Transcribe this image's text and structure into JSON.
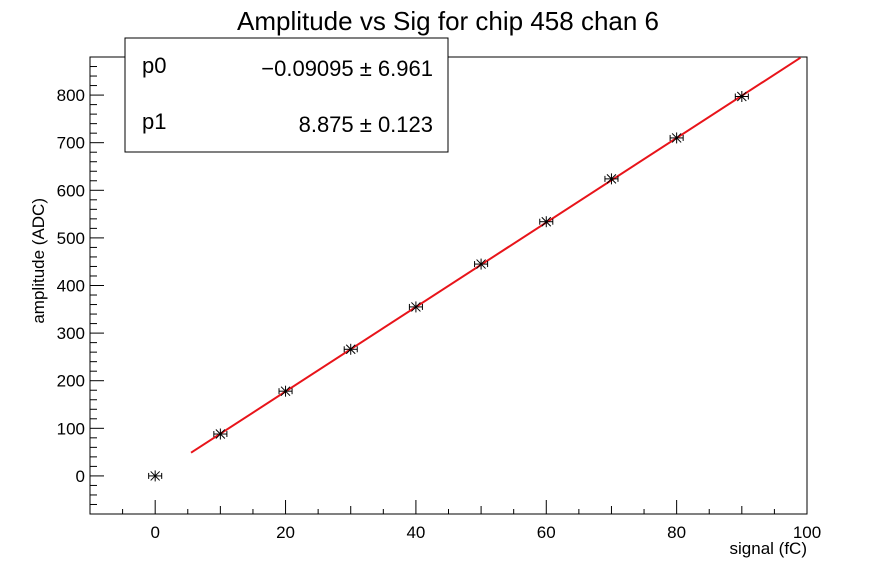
{
  "chart_data": {
    "type": "scatter",
    "title": "Amplitude vs Sig for chip 458 chan 6",
    "xlabel": "signal (fC)",
    "ylabel": "amplitude (ADC)",
    "xlim": [
      -10,
      100
    ],
    "ylim": [
      -80,
      880
    ],
    "x_ticks": [
      0,
      20,
      40,
      60,
      80,
      100
    ],
    "y_ticks": [
      0,
      100,
      200,
      300,
      400,
      500,
      600,
      700,
      800
    ],
    "grid": false,
    "points": {
      "x": [
        0,
        10,
        20,
        30,
        40,
        50,
        60,
        70,
        80,
        90
      ],
      "y": [
        0,
        88,
        178,
        266,
        355,
        445,
        534,
        624,
        710,
        797
      ],
      "x_err": 1,
      "y_err": 3
    },
    "fit": {
      "color": "#e8141a",
      "x_range": [
        5.5,
        99
      ],
      "p0": -0.09095,
      "p1": 8.875
    },
    "stats_box": {
      "rows": [
        {
          "label": "p0",
          "value": "−0.09095 ± 6.961"
        },
        {
          "label": "p1",
          "value": "8.875 ± 0.123"
        }
      ]
    }
  }
}
